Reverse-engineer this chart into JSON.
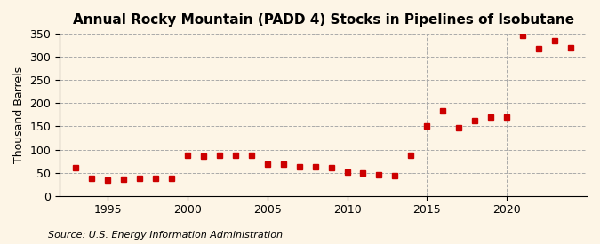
{
  "title": "Annual Rocky Mountain (PADD 4) Stocks in Pipelines of Isobutane",
  "ylabel": "Thousand Barrels",
  "source": "Source: U.S. Energy Information Administration",
  "years": [
    1993,
    1994,
    1995,
    1996,
    1997,
    1998,
    1999,
    2000,
    2001,
    2002,
    2003,
    2004,
    2005,
    2006,
    2007,
    2008,
    2009,
    2010,
    2011,
    2012,
    2013,
    2014,
    2015,
    2016,
    2017,
    2018,
    2019,
    2020,
    2021,
    2022,
    2023,
    2024
  ],
  "values": [
    60,
    38,
    35,
    36,
    37,
    37,
    38,
    87,
    86,
    87,
    87,
    87,
    68,
    69,
    62,
    63,
    61,
    51,
    50,
    46,
    44,
    88,
    150,
    183,
    148,
    162,
    170,
    170,
    346,
    317,
    335,
    320
  ],
  "marker_color": "#cc0000",
  "marker_size": 5,
  "bg_color": "#fdf5e6",
  "grid_color": "#aaaaaa",
  "vgrid_years": [
    1995,
    2000,
    2005,
    2010,
    2015,
    2020
  ],
  "ylim": [
    0,
    350
  ],
  "yticks": [
    0,
    50,
    100,
    150,
    200,
    250,
    300,
    350
  ],
  "xlim": [
    1992,
    2025
  ],
  "title_fontsize": 11,
  "label_fontsize": 9,
  "source_fontsize": 8
}
